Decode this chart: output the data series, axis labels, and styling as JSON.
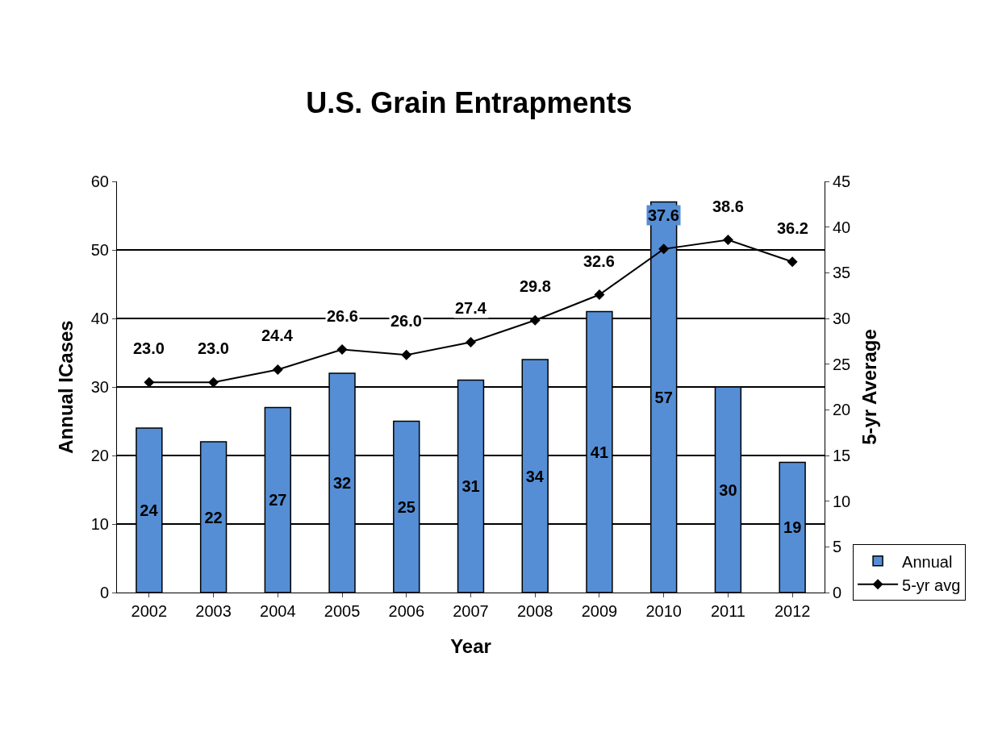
{
  "chart_data": {
    "type": "bar",
    "title": "U.S. Grain Entrapments",
    "xlabel": "Year",
    "ylabel": "Annual ICases",
    "y2label": "5-yr Average",
    "categories": [
      "2002",
      "2003",
      "2004",
      "2005",
      "2006",
      "2007",
      "2008",
      "2009",
      "2010",
      "2011",
      "2012"
    ],
    "series": [
      {
        "name": "Annual",
        "type": "bar",
        "color": "#558ed5",
        "values": [
          24,
          22,
          27,
          32,
          25,
          31,
          34,
          41,
          57,
          30,
          19
        ],
        "value_labels": [
          "24",
          "22",
          "27",
          "32",
          "25",
          "31",
          "34",
          "41",
          "57",
          "30",
          "19"
        ]
      },
      {
        "name": "5-yr avg",
        "type": "line",
        "axis": "y2",
        "color": "#000000",
        "marker": "diamond",
        "values": [
          23.0,
          23.0,
          24.4,
          26.6,
          26.0,
          27.4,
          29.8,
          32.6,
          37.6,
          38.6,
          36.2
        ],
        "value_labels": [
          "23.0",
          "23.0",
          "24.4",
          "26.6",
          "26.0",
          "27.4",
          "29.8",
          "32.6",
          "37.6",
          "38.6",
          "36.2"
        ]
      }
    ],
    "ylim": [
      0,
      60
    ],
    "yticks": [
      0,
      10,
      20,
      30,
      40,
      50,
      60
    ],
    "y2lim": [
      0,
      45
    ],
    "y2ticks": [
      0,
      5,
      10,
      15,
      20,
      25,
      30,
      35,
      40,
      45
    ],
    "grid": "y",
    "legend": "bottom right"
  }
}
